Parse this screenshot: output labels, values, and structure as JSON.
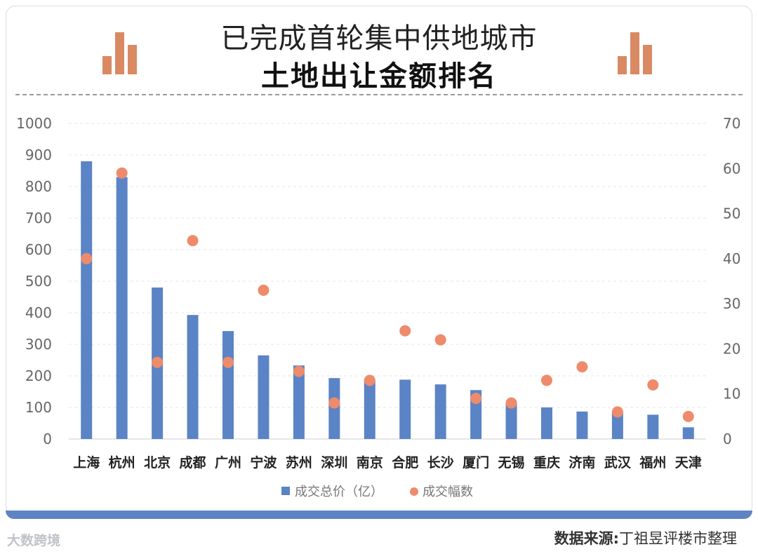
{
  "header": {
    "title_line1": "已完成首轮集中供地城市",
    "title_line2": "土地出让金额排名"
  },
  "footer": {
    "source_label": "数据来源:",
    "source_value": "丁祖昱评楼市整理",
    "watermark": "大数跨境"
  },
  "colors": {
    "bar": "#5b84c6",
    "dot": "#ee8b6b",
    "deco": "#d98a63",
    "frame": "#5f84c3"
  },
  "chart_data": {
    "type": "bar",
    "categories": [
      "上海",
      "杭州",
      "北京",
      "成都",
      "广州",
      "宁波",
      "苏州",
      "深圳",
      "南京",
      "合肥",
      "长沙",
      "厦门",
      "无锡",
      "重庆",
      "济南",
      "武汉",
      "福州",
      "天津"
    ],
    "series": [
      {
        "name": "成交总价（亿）",
        "type": "bar",
        "axis": "left",
        "values": [
          880,
          830,
          480,
          393,
          342,
          265,
          233,
          193,
          187,
          188,
          173,
          155,
          113,
          100,
          87,
          86,
          77,
          37
        ]
      },
      {
        "name": "成交幅数",
        "type": "scatter",
        "axis": "right",
        "values": [
          40,
          59,
          17,
          44,
          17,
          33,
          15,
          8,
          13,
          24,
          22,
          9,
          8,
          13,
          16,
          6,
          12,
          5
        ]
      }
    ],
    "ylim_left": [
      0,
      1000
    ],
    "yticks_left": [
      0,
      100,
      200,
      300,
      400,
      500,
      600,
      700,
      800,
      900,
      1000
    ],
    "ylim_right": [
      0,
      70
    ],
    "yticks_right": [
      0,
      10,
      20,
      30,
      40,
      50,
      60,
      70
    ],
    "legend": [
      "成交总价（亿）",
      "成交幅数"
    ],
    "legend_position": "bottom"
  }
}
